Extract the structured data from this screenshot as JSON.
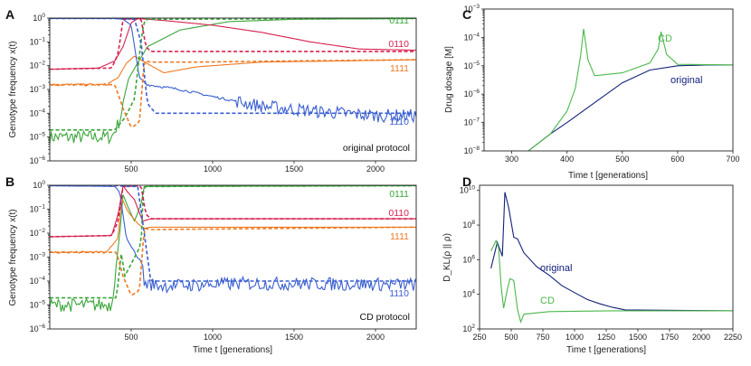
{
  "colors": {
    "green": "#3aa63a",
    "red": "#d6204e",
    "orange": "#ee7a22",
    "blue": "#3a5fd0",
    "navy": "#14207a",
    "cd_green": "#4cb84c"
  },
  "panels": {
    "A": {
      "letter": "A",
      "protocol_label": "original protocol"
    },
    "B": {
      "letter": "B",
      "protocol_label": "CD protocol"
    },
    "C": {
      "letter": "C",
      "curve_labels": {
        "cd": "CD",
        "original": "original"
      }
    },
    "D": {
      "letter": "D",
      "curve_labels": {
        "cd": "CD",
        "original": "original"
      }
    }
  },
  "genotype_labels": [
    "0111",
    "0110",
    "1111",
    "1110"
  ],
  "chart_data": [
    {
      "id": "A",
      "type": "line",
      "title": "original protocol",
      "ylabel": "Genotype frequency x(t)",
      "xlabel": "",
      "xlim": [
        0,
        2250
      ],
      "ylim_log10": [
        -6,
        0
      ],
      "x_ticks": [
        "500",
        "1000",
        "1500",
        "2000"
      ],
      "y_ticks": [
        "10^-6",
        "10^-5",
        "10^-4",
        "10^-3",
        "10^-2",
        "10^-1",
        "10^0"
      ],
      "series": [
        {
          "name": "0111",
          "color_key": "green",
          "style": "solid",
          "x": [
            0,
            380,
            430,
            480,
            530,
            600,
            800,
            1100,
            1500,
            2000,
            2250
          ],
          "log10_y": [
            -5,
            -5,
            -4.3,
            -2.6,
            -2,
            -1.2,
            -0.5,
            -0.15,
            -0.05,
            -0.03,
            -0.02
          ]
        },
        {
          "name": "0110",
          "color_key": "red",
          "style": "solid",
          "x": [
            0,
            300,
            400,
            450,
            500,
            540,
            700,
            1000,
            1300,
            1600,
            1900,
            2250
          ],
          "log10_y": [
            -2.15,
            -2.1,
            -1.8,
            -1.2,
            -0.2,
            -0.02,
            -0.1,
            -0.3,
            -0.6,
            -1.0,
            -1.3,
            -1.35
          ]
        },
        {
          "name": "1111",
          "color_key": "orange",
          "style": "solid",
          "x": [
            0,
            350,
            420,
            470,
            520,
            570,
            700,
            900,
            1300,
            1800,
            2250
          ],
          "log10_y": [
            -2.8,
            -2.8,
            -2.5,
            -1.9,
            -1.6,
            -1.8,
            -2.3,
            -2.05,
            -1.85,
            -1.8,
            -1.75
          ]
        },
        {
          "name": "1110",
          "color_key": "blue",
          "style": "solid",
          "x": [
            0,
            400,
            450,
            500,
            550,
            600,
            800,
            1000,
            1300,
            1600,
            2000,
            2250
          ],
          "log10_y": [
            -0.02,
            -0.02,
            -0.05,
            -0.3,
            -2.5,
            -2.8,
            -3.0,
            -3.3,
            -3.7,
            -3.9,
            -4.1,
            -4.1
          ]
        },
        {
          "name": "0111 (dashed)",
          "color_key": "green",
          "style": "dashed",
          "x": [
            0,
            400,
            460,
            520,
            560,
            580,
            600,
            2250
          ],
          "log10_y": [
            -4.7,
            -4.7,
            -4.2,
            -3.4,
            -1.0,
            -0.1,
            -0.05,
            -0.02
          ]
        },
        {
          "name": "0110 (dashed)",
          "color_key": "red",
          "style": "dashed",
          "x": [
            0,
            380,
            420,
            450,
            560,
            590,
            620,
            2250
          ],
          "log10_y": [
            -2.15,
            -2.1,
            -1.5,
            -0.05,
            -0.02,
            -1.2,
            -1.4,
            -1.4
          ]
        },
        {
          "name": "1111 (dashed)",
          "color_key": "orange",
          "style": "dashed",
          "x": [
            0,
            400,
            450,
            500,
            550,
            580,
            620,
            900,
            1500,
            2250
          ],
          "log10_y": [
            -2.8,
            -2.8,
            -3.8,
            -4.6,
            -4.4,
            -1.8,
            -1.85,
            -1.85,
            -1.8,
            -1.75
          ]
        },
        {
          "name": "1110 (dashed)",
          "color_key": "blue",
          "style": "dashed",
          "x": [
            0,
            450,
            520,
            560,
            600,
            650,
            700,
            2250
          ],
          "log10_y": [
            -0.02,
            -0.02,
            -0.05,
            -1.0,
            -3.6,
            -4.0,
            -4.0,
            -4.0
          ]
        }
      ]
    },
    {
      "id": "B",
      "type": "line",
      "title": "CD protocol",
      "ylabel": "Genotype frequency x(t)",
      "xlabel": "Time t [generations]",
      "xlim": [
        0,
        2250
      ],
      "ylim_log10": [
        -6,
        0
      ],
      "x_ticks": [
        "500",
        "1000",
        "1500",
        "2000"
      ],
      "y_ticks": [
        "10^-6",
        "10^-5",
        "10^-4",
        "10^-3",
        "10^-2",
        "10^-1",
        "10^0"
      ],
      "series": [
        {
          "name": "0111",
          "color_key": "green",
          "style": "solid",
          "x": [
            0,
            380,
            430,
            450,
            480,
            520,
            560,
            580,
            2250
          ],
          "log10_y": [
            -5,
            -5,
            -2,
            -0.4,
            -0.9,
            -1.5,
            -0.8,
            -0.05,
            -0.02
          ]
        },
        {
          "name": "0110",
          "color_key": "red",
          "style": "solid",
          "x": [
            0,
            380,
            420,
            450,
            480,
            520,
            570,
            620,
            700,
            2250
          ],
          "log10_y": [
            -2.15,
            -2.1,
            -1.2,
            -0.02,
            -0.3,
            -0.6,
            -1.5,
            -1.4,
            -1.4,
            -1.4
          ]
        },
        {
          "name": "1111",
          "color_key": "orange",
          "style": "solid",
          "x": [
            0,
            350,
            420,
            440,
            480,
            540,
            580,
            620,
            2250
          ],
          "log10_y": [
            -2.8,
            -2.8,
            -2.2,
            -0.5,
            -1.1,
            -1.6,
            -1.8,
            -1.75,
            -1.75
          ]
        },
        {
          "name": "1110",
          "color_key": "blue",
          "style": "solid",
          "x": [
            0,
            400,
            430,
            470,
            520,
            570,
            580,
            700,
            1200,
            2250
          ],
          "log10_y": [
            -0.02,
            -0.05,
            -0.3,
            -2.2,
            -2.8,
            -3.3,
            -4.1,
            -4.2,
            -4.1,
            -4.15
          ]
        },
        {
          "name": "0111 (dashed)",
          "color_key": "green",
          "style": "dashed",
          "x": [
            0,
            410,
            440,
            460,
            560,
            575,
            600,
            2250
          ],
          "log10_y": [
            -4.7,
            -4.7,
            -2.8,
            -3.8,
            -2.5,
            -0.1,
            -0.05,
            -0.02
          ]
        },
        {
          "name": "0110 (dashed)",
          "color_key": "red",
          "style": "dashed",
          "x": [
            0,
            380,
            420,
            450,
            560,
            590,
            620,
            2250
          ],
          "log10_y": [
            -2.15,
            -2.1,
            -1.5,
            -0.05,
            -0.02,
            -1.2,
            -1.4,
            -1.4
          ]
        },
        {
          "name": "1111 (dashed)",
          "color_key": "orange",
          "style": "dashed",
          "x": [
            0,
            410,
            450,
            500,
            550,
            580,
            620,
            2250
          ],
          "log10_y": [
            -2.8,
            -2.8,
            -3.8,
            -4.6,
            -4.4,
            -1.8,
            -1.85,
            -1.75
          ]
        },
        {
          "name": "1110 (dashed)",
          "color_key": "blue",
          "style": "dashed",
          "x": [
            0,
            430,
            460,
            540,
            580,
            620,
            2250
          ],
          "log10_y": [
            -0.02,
            -0.02,
            -0.05,
            -0.05,
            -2.0,
            -4.0,
            -4.0
          ]
        }
      ]
    },
    {
      "id": "C",
      "type": "line",
      "title": "",
      "ylabel": "Drug dosage [M]",
      "xlabel": "Time t [generations]",
      "xlim": [
        250,
        700
      ],
      "ylim_log10": [
        -8,
        -3
      ],
      "x_ticks": [
        "300",
        "400",
        "500",
        "600",
        "700"
      ],
      "y_ticks": [
        "10^-8",
        "10^-7",
        "10^-6",
        "10^-5",
        "10^-4",
        "10^-3"
      ],
      "series": [
        {
          "name": "original",
          "color_key": "navy",
          "x": [
            330,
            370,
            400,
            450,
            500,
            550,
            600,
            650,
            700
          ],
          "log10_y": [
            -8,
            -7.4,
            -7.0,
            -6.3,
            -5.6,
            -5.15,
            -5.0,
            -4.97,
            -4.97
          ]
        },
        {
          "name": "CD",
          "color_key": "cd_green",
          "x": [
            330,
            370,
            400,
            415,
            425,
            430,
            438,
            450,
            500,
            550,
            565,
            570,
            580,
            600,
            700
          ],
          "log10_y": [
            -8,
            -7.4,
            -6.6,
            -5.8,
            -4.6,
            -3.7,
            -4.8,
            -5.35,
            -5.25,
            -4.9,
            -4.4,
            -3.8,
            -4.6,
            -4.95,
            -4.97
          ]
        }
      ]
    },
    {
      "id": "D",
      "type": "line",
      "title": "",
      "ylabel": "D_KL(ρ || ρ)",
      "xlabel": "Time t [generations]",
      "xlim": [
        250,
        2250
      ],
      "ylim_log10": [
        2,
        10.3
      ],
      "x_ticks": [
        "250",
        "500",
        "750",
        "1000",
        "1250",
        "1500",
        "1750",
        "2000",
        "2250"
      ],
      "y_ticks": [
        "10^2",
        "10^4",
        "10^6",
        "10^8",
        "10^10"
      ],
      "series": [
        {
          "name": "original",
          "color_key": "navy",
          "x": [
            340,
            390,
            430,
            450,
            480,
            520,
            550,
            600,
            700,
            800,
            900,
            1000,
            1100,
            1200,
            1300,
            1400,
            2250
          ],
          "log10_y": [
            5.5,
            7,
            6.2,
            9.9,
            9.0,
            7.3,
            7.2,
            6.4,
            5.6,
            5.1,
            4.5,
            4.1,
            3.7,
            3.45,
            3.25,
            3.1,
            3.05
          ]
        },
        {
          "name": "CD",
          "color_key": "cd_green",
          "x": [
            340,
            380,
            400,
            420,
            440,
            470,
            490,
            520,
            550,
            575,
            600,
            800,
            1300,
            2250
          ],
          "log10_y": [
            6.5,
            7.1,
            6.7,
            4.5,
            3.2,
            4.3,
            4.9,
            4.8,
            3.1,
            2.4,
            2.85,
            3.0,
            3.05,
            3.05
          ]
        }
      ]
    }
  ]
}
